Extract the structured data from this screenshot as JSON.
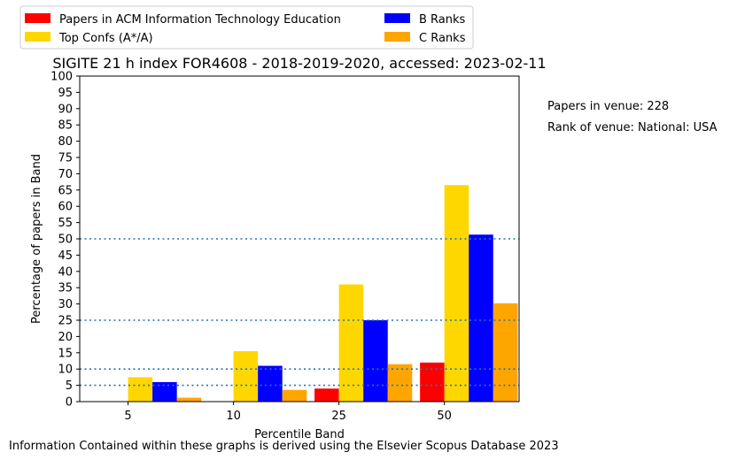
{
  "chart_data": {
    "type": "bar",
    "title": "SIGITE 21 h index FOR4608 - 2018-2019-2020, accessed: 2023-02-11",
    "xlabel": "Percentile Band",
    "ylabel": "Percentage of papers in Band",
    "ylim": [
      0,
      100
    ],
    "yticks": [
      0,
      5,
      10,
      15,
      20,
      25,
      30,
      35,
      40,
      45,
      50,
      55,
      60,
      65,
      70,
      75,
      80,
      85,
      90,
      95,
      100
    ],
    "categories": [
      "5",
      "10",
      "25",
      "50"
    ],
    "series": [
      {
        "name": "Papers in ACM Information Technology Education",
        "color": "#ff0000",
        "values": [
          0,
          0,
          4,
          12
        ]
      },
      {
        "name": "Top Confs (A*/A)",
        "color": "#ffd700",
        "values": [
          7.5,
          15.5,
          36,
          66.5
        ]
      },
      {
        "name": "B Ranks",
        "color": "#0000ff",
        "values": [
          6,
          11,
          25,
          51.3
        ]
      },
      {
        "name": "C Ranks",
        "color": "#ffa500",
        "values": [
          1.2,
          3.6,
          11.5,
          30.2
        ]
      }
    ],
    "reference_lines": [
      5,
      10,
      25,
      50
    ],
    "reference_line_color": "#1f77b4",
    "legend_position": "top-left, outside plot",
    "grid": false
  },
  "annotations": {
    "papers_in_venue": "Papers in venue: 228",
    "rank_of_venue": "Rank of venue: National: USA"
  },
  "footer": "Information Contained within these graphs is derived using the Elsevier Scopus Database 2023"
}
